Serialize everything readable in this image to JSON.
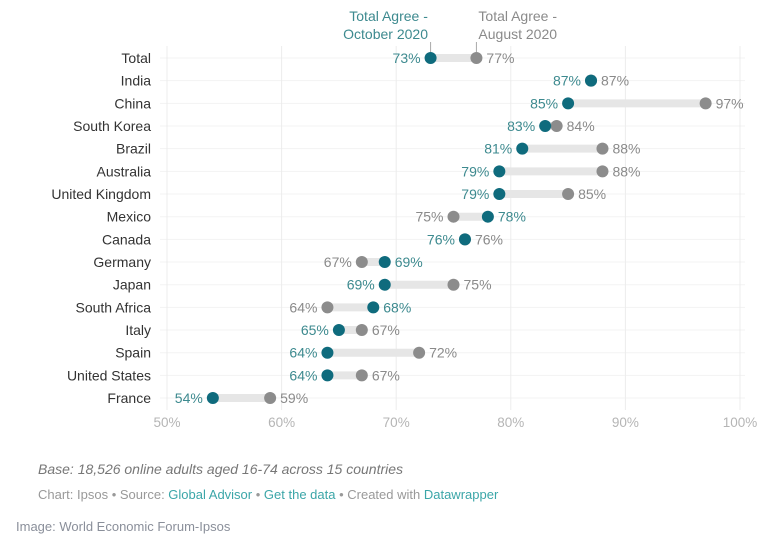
{
  "chart_data": {
    "type": "dot-range",
    "title": "",
    "series": [
      {
        "name": "Total Agree - October 2020",
        "color": "#0f6b7d"
      },
      {
        "name": "Total Agree - August 2020",
        "color": "#8c8c8c"
      }
    ],
    "legend": {
      "oct_line1": "Total Agree -",
      "oct_line2": "October 2020",
      "aug_line1": "Total Agree -",
      "aug_line2": "August 2020",
      "placement": "top"
    },
    "categories": [
      "Total",
      "India",
      "China",
      "South Korea",
      "Brazil",
      "Australia",
      "United Kingdom",
      "Mexico",
      "Canada",
      "Germany",
      "Japan",
      "South Africa",
      "Italy",
      "Spain",
      "United States",
      "France"
    ],
    "october_2020": [
      73,
      87,
      85,
      83,
      81,
      79,
      79,
      78,
      76,
      69,
      69,
      68,
      65,
      64,
      64,
      54
    ],
    "august_2020": [
      77,
      87,
      97,
      84,
      88,
      88,
      85,
      75,
      76,
      67,
      75,
      64,
      67,
      72,
      67,
      59
    ],
    "xlim": [
      50,
      100
    ],
    "xticks": [
      "50%",
      "60%",
      "70%",
      "80%",
      "90%",
      "100%"
    ],
    "xtick_values": [
      50,
      60,
      70,
      80,
      90,
      100
    ],
    "grid": true,
    "value_suffix": "%"
  },
  "footer": {
    "base": "Base: 18,526 online adults aged 16-74 across 15 countries",
    "chart_by": "Chart: Ipsos",
    "sep": " • ",
    "source_prefix": "Source: ",
    "source_link": "Global Advisor",
    "data_link": "Get the data",
    "created_prefix": "Created with ",
    "created_link": "Datawrapper",
    "image_credit": "Image: World Economic Forum-Ipsos"
  },
  "colors": {
    "october": "#0f6b7d",
    "august": "#8c8c8c",
    "range_bar": "#e6e6e6",
    "link": "#3ba6a8"
  }
}
